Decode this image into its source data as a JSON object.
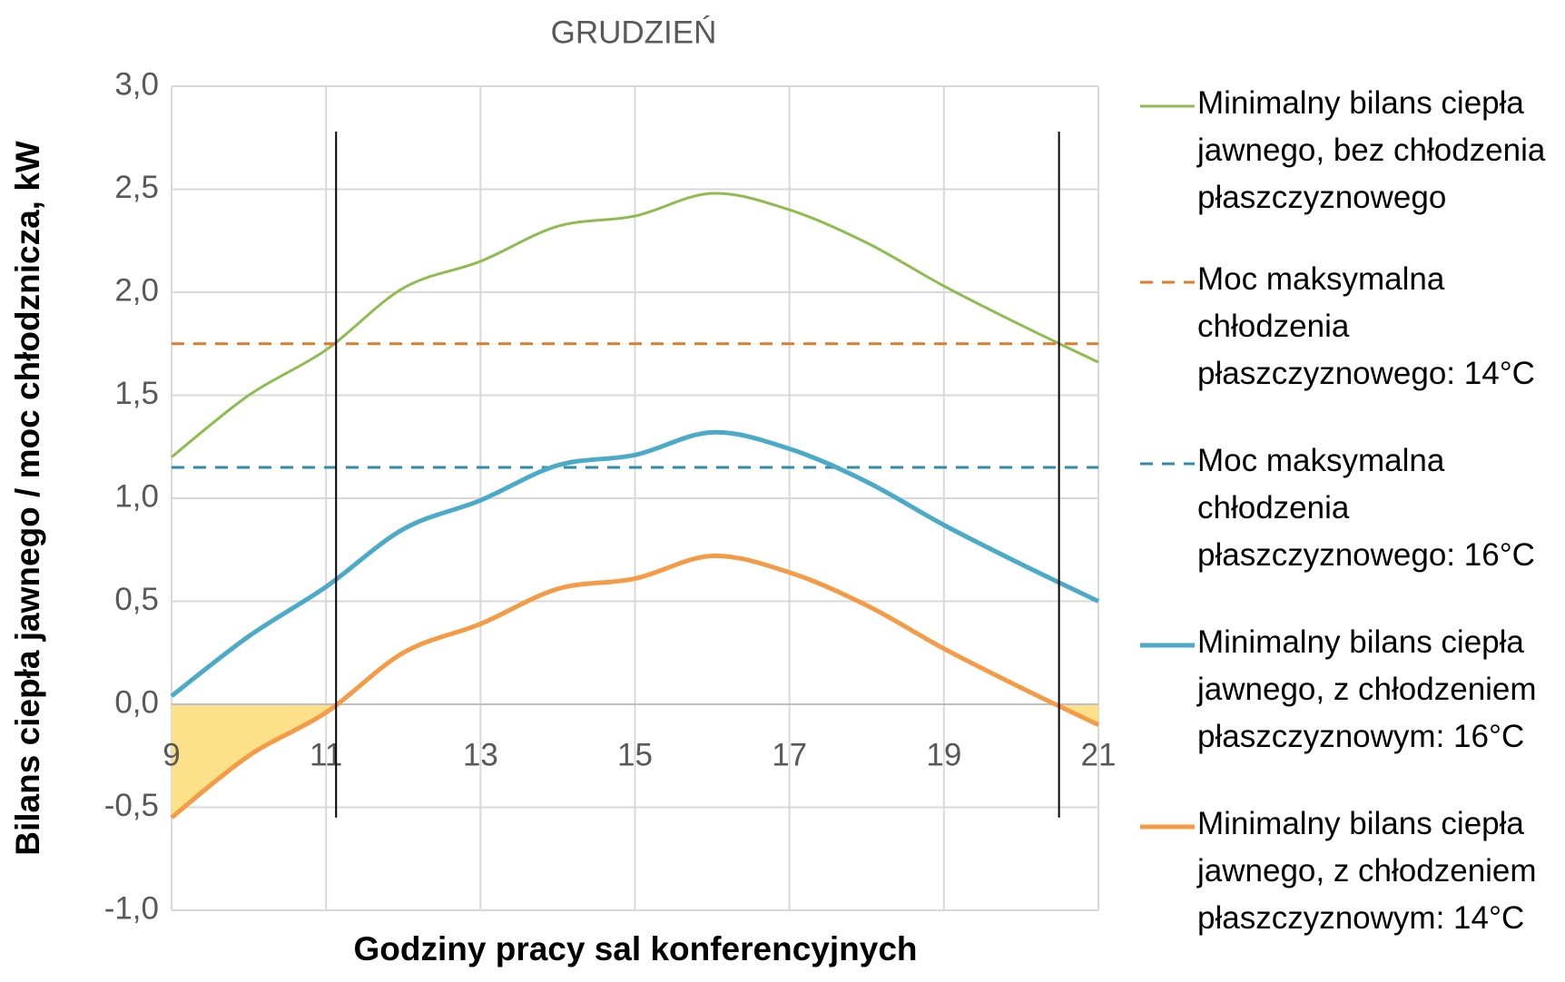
{
  "chart_data": {
    "type": "line",
    "title": "GRUDZIEŃ",
    "xlabel": "Godziny pracy sal konferencyjnych",
    "ylabel": "Bilans ciepła jawnego / moc chłodznicza, kW",
    "x": [
      9,
      10,
      11,
      12,
      13,
      14,
      15,
      16,
      17,
      18,
      19,
      20,
      21
    ],
    "xlim": [
      9,
      21
    ],
    "xticks": [
      9,
      11,
      13,
      15,
      17,
      19,
      21
    ],
    "ylim": [
      -1.0,
      3.0
    ],
    "yticks": [
      {
        "value": -1.0,
        "label": "-1,0"
      },
      {
        "value": -0.5,
        "label": "-0,5"
      },
      {
        "value": 0,
        "label": "0,0"
      },
      {
        "value": 0.5,
        "label": "0,5"
      },
      {
        "value": 1.0,
        "label": "1,0"
      },
      {
        "value": 1.5,
        "label": "1,5"
      },
      {
        "value": 2.0,
        "label": "2,0"
      },
      {
        "value": 2.5,
        "label": "2,5"
      },
      {
        "value": 3.0,
        "label": "3,0"
      }
    ],
    "grid": true,
    "legend": "right",
    "series": [
      {
        "name": "Minimalny bilans ciepła jawnego, bez chłodzenia płaszczyznowego",
        "color": "#8fbc4f",
        "width": 3,
        "values": [
          1.2,
          1.5,
          1.72,
          2.02,
          2.15,
          2.32,
          2.37,
          2.48,
          2.4,
          2.24,
          2.03,
          1.84,
          1.66
        ]
      },
      {
        "name": "Moc maksymalna chłodzenia płaszczyznowego: 14°C",
        "color": "#e07b2a",
        "width": 3,
        "dashed": true,
        "values": [
          1.75,
          1.75,
          1.75,
          1.75,
          1.75,
          1.75,
          1.75,
          1.75,
          1.75,
          1.75,
          1.75,
          1.75,
          1.75
        ]
      },
      {
        "name": "Moc maksymalna chłodzenia płaszczyznowego: 16°C",
        "color": "#2e8caa",
        "width": 3,
        "dashed": true,
        "values": [
          1.15,
          1.15,
          1.15,
          1.15,
          1.15,
          1.15,
          1.15,
          1.15,
          1.15,
          1.15,
          1.15,
          1.15,
          1.15
        ]
      },
      {
        "name": "Minimalny bilans ciepła jawnego, z chłodzeniem płaszczyznowym: 16°C",
        "color": "#4aaac8",
        "width": 5,
        "values": [
          0.04,
          0.33,
          0.57,
          0.85,
          0.99,
          1.16,
          1.21,
          1.32,
          1.24,
          1.08,
          0.87,
          0.68,
          0.5
        ]
      },
      {
        "name": "Minimalny bilans ciepła jawnego, z chłodzeniem płaszczyznowym: 14°C",
        "color": "#f59a45",
        "width": 5,
        "values": [
          -0.55,
          -0.25,
          -0.04,
          0.25,
          0.39,
          0.56,
          0.61,
          0.72,
          0.64,
          0.48,
          0.27,
          0.08,
          -0.1
        ]
      }
    ],
    "fill_color": "#fde08a",
    "reference_lines": [
      11.13,
      20.49
    ]
  }
}
